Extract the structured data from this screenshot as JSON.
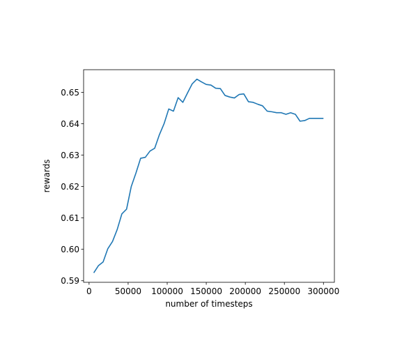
{
  "chart_data": {
    "type": "line",
    "title": "",
    "xlabel": "number of timesteps",
    "ylabel": "rewards",
    "xlim": [
      -7000,
      314000
    ],
    "ylim": [
      0.5895,
      0.5572
    ],
    "grid": false,
    "legend": "none",
    "line_color": "#1f77b4",
    "xticks": [
      0,
      50000,
      100000,
      150000,
      200000,
      250000,
      300000
    ],
    "yticks": [
      0.59,
      0.6,
      0.61,
      0.62,
      0.63,
      0.64,
      0.65
    ],
    "xtick_labels": [
      "0",
      "50000",
      "100000",
      "150000",
      "200000",
      "250000",
      "300000"
    ],
    "ytick_labels": [
      "0.59",
      "0.60",
      "0.61",
      "0.62",
      "0.63",
      "0.64",
      "0.65"
    ],
    "series": [
      {
        "x": [
          6000,
          12000,
          18000,
          24000,
          30000,
          36000,
          42000,
          48000,
          54000,
          60000,
          66000,
          72000,
          78000,
          84000,
          90000,
          96000,
          102000,
          108000,
          114000,
          120000,
          126000,
          132000,
          138000,
          144000,
          150000,
          156000,
          162000,
          168000,
          174000,
          180000,
          186000,
          192000,
          198000,
          204000,
          210000,
          216000,
          222000,
          228000,
          234000,
          240000,
          246000,
          252000,
          258000,
          264000,
          270000,
          276000,
          282000,
          288000,
          294000,
          300000
        ],
        "y": [
          0.5925,
          0.5948,
          0.596,
          0.6002,
          0.6025,
          0.6063,
          0.6113,
          0.6128,
          0.62,
          0.6243,
          0.629,
          0.6293,
          0.6313,
          0.6322,
          0.6365,
          0.64,
          0.6447,
          0.644,
          0.6483,
          0.6468,
          0.6498,
          0.6527,
          0.6542,
          0.6533,
          0.6525,
          0.6523,
          0.6513,
          0.6512,
          0.649,
          0.6485,
          0.6482,
          0.6493,
          0.6495,
          0.647,
          0.6468,
          0.6462,
          0.6457,
          0.644,
          0.6438,
          0.6435,
          0.6435,
          0.643,
          0.6435,
          0.643,
          0.6408,
          0.641,
          0.6417,
          0.6417,
          0.6417,
          0.6417
        ]
      }
    ]
  }
}
